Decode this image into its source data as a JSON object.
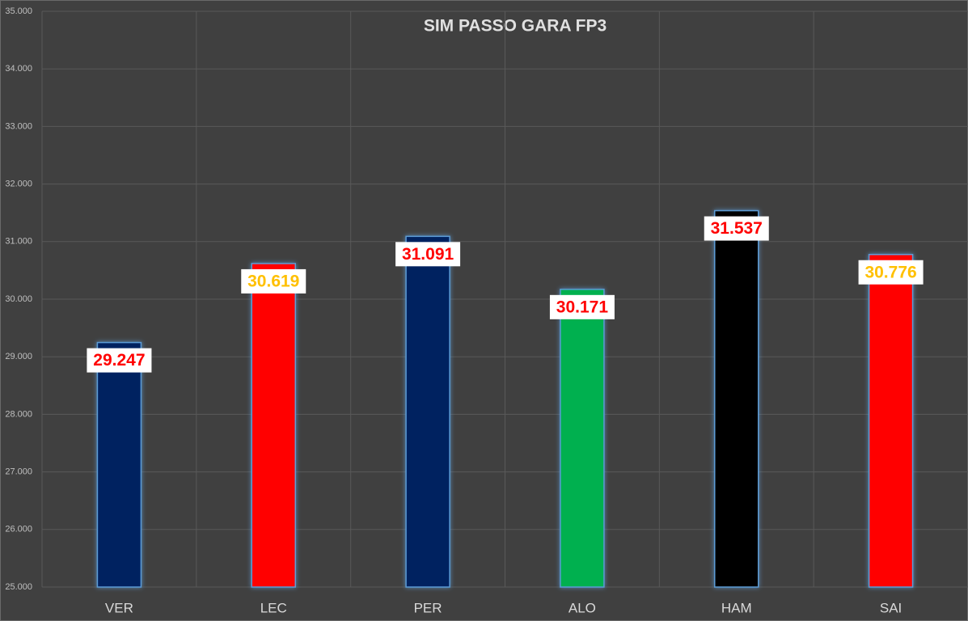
{
  "chart_data": {
    "type": "bar",
    "title": "SIM PASSO GARA FP3",
    "categories": [
      "VER",
      "LEC",
      "PER",
      "ALO",
      "HAM",
      "SAI"
    ],
    "values": [
      29.247,
      30.619,
      31.091,
      30.171,
      31.537,
      30.776
    ],
    "colors": [
      "#002060",
      "#ff0000",
      "#002060",
      "#00b050",
      "#000000",
      "#ff0000"
    ],
    "label_colors": [
      "#ff0000",
      "#ffc000",
      "#ff0000",
      "#ff0000",
      "#ff0000",
      "#ffc000"
    ],
    "ylim": [
      25,
      35
    ],
    "yticks": [
      {
        "value": 25,
        "label": "25.000"
      },
      {
        "value": 26,
        "label": "26.000"
      },
      {
        "value": 27,
        "label": "27.000"
      },
      {
        "value": 28,
        "label": "28.000"
      },
      {
        "value": 29,
        "label": "29.000"
      },
      {
        "value": 30,
        "label": "30.000"
      },
      {
        "value": 31,
        "label": "31.000"
      },
      {
        "value": 32,
        "label": "32.000"
      },
      {
        "value": 33,
        "label": "33.000"
      },
      {
        "value": 34,
        "label": "34.000"
      },
      {
        "value": 35,
        "label": "35.000"
      }
    ],
    "grid": true
  }
}
